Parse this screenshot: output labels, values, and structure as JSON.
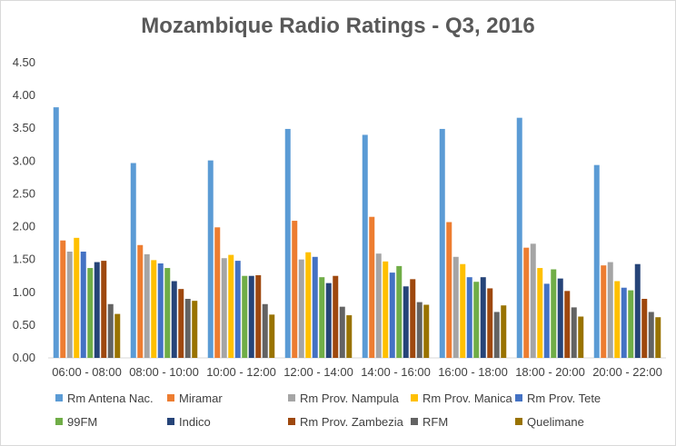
{
  "chart_data": {
    "type": "bar",
    "title": "Mozambique Radio Ratings - Q3, 2016",
    "xlabel": "",
    "ylabel": "",
    "ylim": [
      0,
      4.5
    ],
    "yticks": [
      0,
      0.5,
      1.0,
      1.5,
      2.0,
      2.5,
      3.0,
      3.5,
      4.0,
      4.5
    ],
    "ytick_labels": [
      "0.00",
      "0.50",
      "1.00",
      "1.50",
      "2.00",
      "2.50",
      "3.00",
      "3.50",
      "4.00",
      "4.50"
    ],
    "grid": false,
    "legend_position": "bottom",
    "categories": [
      "06:00 - 08:00",
      "08:00 - 10:00",
      "10:00 - 12:00",
      "12:00 - 14:00",
      "14:00 - 16:00",
      "16:00 - 18:00",
      "18:00 - 20:00",
      "20:00 - 22:00"
    ],
    "series": [
      {
        "name": "Rm Antena Nac.",
        "color": "#5b9bd5",
        "values": [
          3.82,
          2.97,
          3.01,
          3.49,
          3.4,
          3.49,
          3.66,
          2.94
        ]
      },
      {
        "name": "Miramar",
        "color": "#ed7d31",
        "values": [
          1.79,
          1.72,
          1.99,
          2.09,
          2.15,
          2.07,
          1.68,
          1.41
        ]
      },
      {
        "name": "Rm Prov. Nampula",
        "color": "#a5a5a5",
        "values": [
          1.62,
          1.58,
          1.52,
          1.5,
          1.59,
          1.54,
          1.74,
          1.46
        ]
      },
      {
        "name": "Rm Prov. Manica",
        "color": "#ffc000",
        "values": [
          1.83,
          1.49,
          1.57,
          1.61,
          1.47,
          1.43,
          1.37,
          1.17
        ]
      },
      {
        "name": "Rm Prov. Tete",
        "color": "#4472c4",
        "values": [
          1.62,
          1.44,
          1.48,
          1.54,
          1.3,
          1.23,
          1.13,
          1.07
        ]
      },
      {
        "name": "99FM",
        "color": "#70ad47",
        "values": [
          1.37,
          1.37,
          1.25,
          1.23,
          1.4,
          1.16,
          1.35,
          1.03
        ]
      },
      {
        "name": "Indico",
        "color": "#264478",
        "values": [
          1.46,
          1.17,
          1.25,
          1.14,
          1.09,
          1.23,
          1.21,
          1.43
        ]
      },
      {
        "name": "Rm Prov. Zambezia",
        "color": "#9e480e",
        "values": [
          1.48,
          1.05,
          1.26,
          1.25,
          1.2,
          1.06,
          1.02,
          0.9
        ]
      },
      {
        "name": "RFM",
        "color": "#636363",
        "values": [
          0.82,
          0.9,
          0.82,
          0.78,
          0.85,
          0.7,
          0.77,
          0.7
        ]
      },
      {
        "name": "Quelimane",
        "color": "#997300",
        "values": [
          0.67,
          0.87,
          0.66,
          0.65,
          0.81,
          0.8,
          0.63,
          0.62
        ]
      }
    ]
  }
}
